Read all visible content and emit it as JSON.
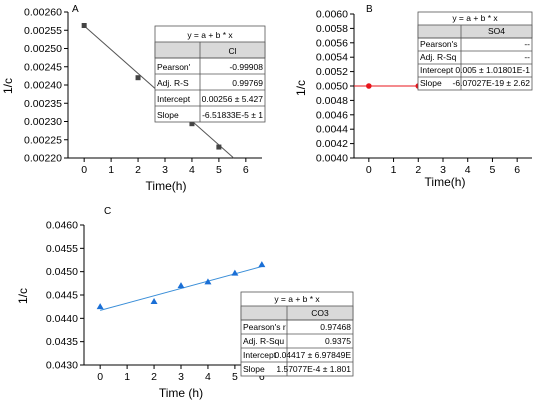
{
  "chart_data": [
    {
      "type": "scatter",
      "panel_label": "A",
      "xlabel": "Time(h)",
      "ylabel": "1/c",
      "xlim": [
        -0.6,
        6.6
      ],
      "ylim": [
        0.0022,
        0.0026
      ],
      "xticks": [
        "0",
        "1",
        "2",
        "3",
        "4",
        "5",
        "6"
      ],
      "yticks": [
        "0.00220",
        "0.00225",
        "0.00230",
        "0.00235",
        "0.00240",
        "0.00245",
        "0.00250",
        "0.00255",
        "0.00260"
      ],
      "marker": "square",
      "marker_color": "#444444",
      "fit_color": "#555555",
      "points": [
        {
          "x": 0,
          "y": 0.002563
        },
        {
          "x": 2,
          "y": 0.00242
        },
        {
          "x": 3,
          "y": 0.002361
        },
        {
          "x": 4,
          "y": 0.002294
        },
        {
          "x": 5,
          "y": 0.00223
        }
      ],
      "fit": {
        "x": [
          0,
          5.55
        ],
        "y": [
          0.002562,
          0.0022
        ]
      },
      "table": {
        "equation": "y = a + b * x",
        "series": "Cl",
        "rows": [
          [
            "Pearson'",
            "-0.99908"
          ],
          [
            "Adj. R-S",
            "0.99769"
          ],
          [
            "Intercept",
            "0.00256 ± 5.427"
          ],
          [
            "Slope",
            "-6.51833E-5 ± 1"
          ]
        ]
      }
    },
    {
      "type": "line",
      "panel_label": "B",
      "xlabel": "Time(h)",
      "ylabel": "1/c",
      "xlim": [
        -0.6,
        6.6
      ],
      "ylim": [
        0.004,
        0.006
      ],
      "xticks": [
        "0",
        "1",
        "2",
        "3",
        "4",
        "5",
        "6"
      ],
      "yticks": [
        "0.0040",
        "0.0042",
        "0.0044",
        "0.0046",
        "0.0048",
        "0.0050",
        "0.0052",
        "0.0054",
        "0.0056",
        "0.0058",
        "0.0060"
      ],
      "marker": "circle",
      "marker_color": "#e8151b",
      "fit_color": "#e8151b",
      "points": [
        {
          "x": 0,
          "y": 0.005
        },
        {
          "x": 2,
          "y": 0.005
        },
        {
          "x": 3,
          "y": 0.005
        },
        {
          "x": 4,
          "y": 0.005
        },
        {
          "x": 5,
          "y": 0.005
        },
        {
          "x": 6,
          "y": 0.005
        }
      ],
      "fit": {
        "x": [
          -0.6,
          6.6
        ],
        "y": [
          0.005,
          0.005
        ]
      },
      "table": {
        "equation": "y = a + b * x",
        "series": "SO4",
        "rows": [
          [
            "Pearson's",
            "--"
          ],
          [
            "Adj. R-Sq",
            "--"
          ],
          [
            "Intercept",
            "0.005 ± 1.01801E-1"
          ],
          [
            "Slope",
            "-6.07027E-19 ± 2.62"
          ]
        ]
      }
    },
    {
      "type": "scatter",
      "panel_label": "C",
      "xlabel": "Time (h)",
      "ylabel": "1/c",
      "xlim": [
        -0.6,
        6.6
      ],
      "ylim": [
        0.043,
        0.046
      ],
      "xticks": [
        "0",
        "1",
        "2",
        "3",
        "4",
        "5",
        "6"
      ],
      "yticks": [
        "0.0430",
        "0.0435",
        "0.0440",
        "0.0445",
        "0.0450",
        "0.0455",
        "0.0460"
      ],
      "marker": "triangle",
      "marker_color": "#1a6fd6",
      "fit_color": "#3a8ed8",
      "points": [
        {
          "x": 0,
          "y": 0.04425
        },
        {
          "x": 2,
          "y": 0.04436
        },
        {
          "x": 3,
          "y": 0.0447
        },
        {
          "x": 4,
          "y": 0.04478
        },
        {
          "x": 5,
          "y": 0.04497
        },
        {
          "x": 6,
          "y": 0.04515
        }
      ],
      "fit": {
        "x": [
          0,
          6
        ],
        "y": [
          0.04417,
          0.04511
        ]
      },
      "table": {
        "equation": "y = a + b * x",
        "series": "CO3",
        "rows": [
          [
            "Pearson's r",
            "0.97468"
          ],
          [
            "Adj. R-Squ",
            "0.9375"
          ],
          [
            "Intercept",
            "0.04417 ± 6.97849E"
          ],
          [
            "Slope",
            "1.57077E-4 ± 1.801"
          ]
        ]
      }
    }
  ]
}
